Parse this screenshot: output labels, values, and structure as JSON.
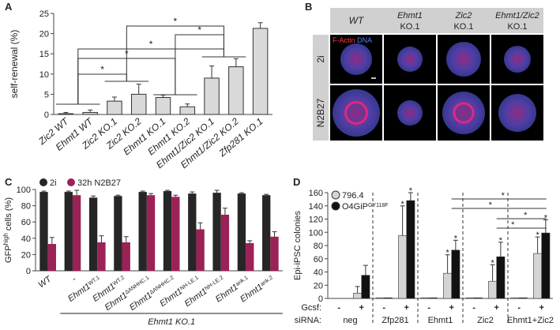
{
  "chart_data": [
    {
      "type": "bar",
      "label": "A",
      "ylabel": "self-renewal (%)",
      "categories": [
        "Zic2 WT",
        "Ehmt1 WT",
        "Zic2 KO.1",
        "Zic2 KO.2",
        "Ehmt1 KO.1",
        "Ehmt1 KO.2",
        "Ehmt1/Zic2 KO.1",
        "Ehmt1/Zic2 KO.2",
        "Zfp281 KO.1"
      ],
      "values": [
        0.2,
        0.5,
        3.3,
        5.0,
        4.2,
        1.9,
        9.0,
        11.8,
        21.3
      ],
      "errors": [
        0.3,
        0.6,
        1.0,
        2.5,
        0.6,
        0.7,
        3.0,
        2.0,
        1.4
      ],
      "color": "#d9d9d9",
      "ylim": [
        0,
        25
      ],
      "yticks": [
        0,
        5,
        10,
        15,
        20,
        25
      ],
      "annotations": [
        "*",
        "*",
        "*",
        "*",
        "*"
      ]
    },
    {
      "type": "grouped_bar",
      "label": "C",
      "ylabel": {
        "text": "GFP",
        "sup": "high",
        "rest": " cells (%)"
      },
      "categories": [
        "WT",
        "-",
        "Ehmt1",
        "Ehmt1",
        "Ehmt1",
        "Ehmt1",
        "Ehmt1",
        "Ehmt1",
        "Ehmt1",
        "Ehmt1"
      ],
      "category_superscripts": [
        null,
        null,
        "WT.1",
        "WT.2",
        "ΔANHHC.1",
        "ΔANHHC.2",
        "NH-LE.1",
        "NH-LE.2",
        "ank.1",
        "ank.2"
      ],
      "group_label": "Ehmt1 KO.1",
      "series": [
        {
          "name": "2i",
          "color": "#262626",
          "values": [
            97,
            97,
            90,
            92,
            97,
            98,
            95,
            96,
            95,
            93
          ],
          "errors": [
            1,
            1,
            2,
            1,
            1,
            1,
            2,
            3,
            1,
            1
          ]
        },
        {
          "name": "32h N2B27",
          "color": "#9b2257",
          "values": [
            33,
            93,
            35,
            35,
            93,
            91,
            51,
            69,
            34,
            42
          ],
          "errors": [
            8,
            6,
            8,
            7,
            2,
            2,
            8,
            8,
            3,
            6
          ]
        }
      ],
      "ylim": [
        0,
        100
      ],
      "yticks": [
        0,
        20,
        40,
        60,
        80,
        100
      ]
    },
    {
      "type": "grouped_bar",
      "label": "D",
      "ylabel": "Epi-iPSC colonies",
      "row_labels": [
        "Gcsf:",
        "siRNA:"
      ],
      "categories": [
        "-",
        "+",
        "-",
        "+",
        "-",
        "+",
        "-",
        "+",
        "-",
        "+"
      ],
      "groups": [
        "neg",
        "Zfp281",
        "Ehmt1",
        "Zic2",
        "Ehmt1+Zic2"
      ],
      "series": [
        {
          "name": "796.4",
          "color": "#d4d4d4",
          "values": [
            0,
            8,
            1,
            95,
            1,
            38,
            1,
            26,
            1,
            68
          ],
          "errors": [
            0,
            10,
            0,
            45,
            0,
            28,
            0,
            25,
            0,
            25
          ]
        },
        {
          "name": "O4GiP",
          "name_sup": "GY118F",
          "color": "#111111",
          "values": [
            0,
            35,
            1,
            148,
            1,
            73,
            1,
            63,
            1,
            99
          ],
          "errors": [
            0,
            15,
            0,
            12,
            0,
            15,
            0,
            22,
            0,
            20
          ]
        }
      ],
      "ylim": [
        0,
        160
      ],
      "yticks": [
        0,
        20,
        40,
        60,
        80,
        100,
        120,
        140,
        160
      ],
      "annotations": [
        "*",
        "*",
        "*",
        "*",
        "*",
        "*",
        "*",
        "*",
        "*",
        "*",
        "*",
        "*"
      ]
    }
  ],
  "image_panel": {
    "label": "B",
    "columns": [
      {
        "gene": "WT"
      },
      {
        "gene": "Ehmt1",
        "clone": "KO.1"
      },
      {
        "gene": "Zic2",
        "clone": "KO.1"
      },
      {
        "gene": "Ehmt1/Zic2",
        "clone": "KO.1"
      }
    ],
    "rows": [
      "2i",
      "N2B27"
    ],
    "stain_red": "F-Actin",
    "stain_blue": "DNA"
  }
}
